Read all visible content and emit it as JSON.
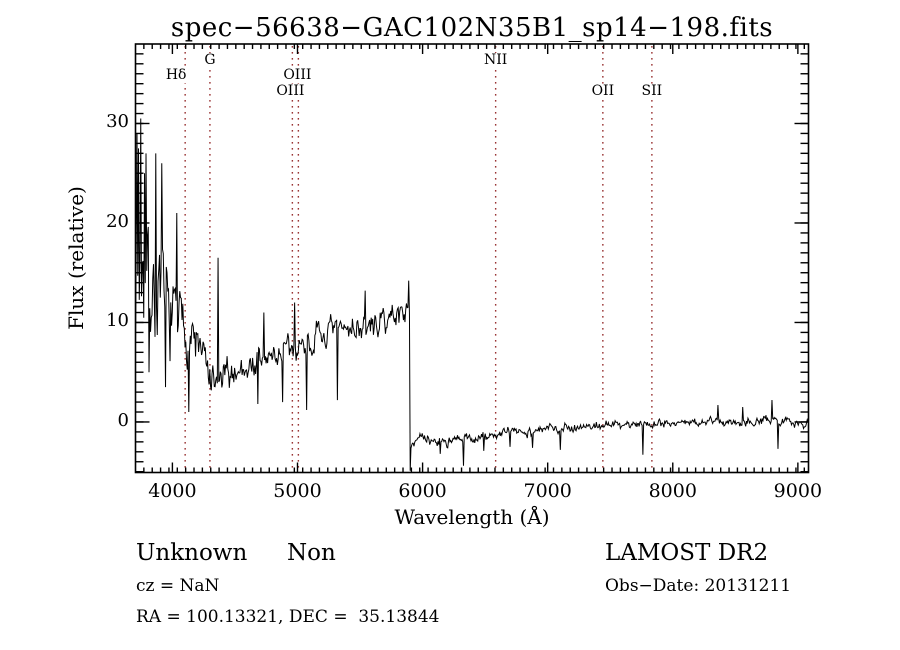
{
  "title": "spec−56638−GAC102N35B1_sp14−198.fits",
  "colors": {
    "spectrum": "#000000",
    "line_marker": "#993333",
    "axis": "#000000",
    "background": "#ffffff"
  },
  "axes": {
    "xlabel": "Wavelength (Å)",
    "ylabel": "Flux (relative)",
    "x_ticks": [
      4000,
      5000,
      6000,
      7000,
      8000,
      9000
    ],
    "y_ticks": [
      0,
      10,
      20,
      30
    ],
    "x_range": [
      3705,
      9085
    ],
    "y_range": [
      -5.08,
      37.99
    ]
  },
  "spectral_lines": [
    {
      "label": "Hδ",
      "wavelength": 4102,
      "row": 2,
      "dx": -9
    },
    {
      "label": "G",
      "wavelength": 4300,
      "row": 1,
      "dx": 0
    },
    {
      "label": "OIII",
      "wavelength": 4959,
      "row": 2,
      "dx": 5
    },
    {
      "label": "OIII",
      "wavelength": 5007,
      "row": 3,
      "dx": -8
    },
    {
      "label": "NII",
      "wavelength": 6584,
      "row": 1,
      "dx": 0
    },
    {
      "label": "OII",
      "wavelength": 7441,
      "row": 3,
      "dx": 0
    },
    {
      "label": "SII",
      "wavelength": 7833,
      "row": 3,
      "dx": 0
    }
  ],
  "chart_data": {
    "type": "line",
    "series_name": "spectrum",
    "title": "spec−56638−GAC102N35B1_sp14−198.fits",
    "xlabel": "Wavelength (Å)",
    "ylabel": "Flux (relative)",
    "xlim": [
      3705,
      9085
    ],
    "ylim": [
      -5.08,
      37.99
    ],
    "grid": "off",
    "sample_step_angstrom": 6,
    "noise_seed": 7,
    "baseline_points": [
      [
        3705,
        15
      ],
      [
        3720,
        17
      ],
      [
        3760,
        15
      ],
      [
        3800,
        14
      ],
      [
        3850,
        13
      ],
      [
        3900,
        12.5
      ],
      [
        3950,
        11.5
      ],
      [
        4000,
        10.5
      ],
      [
        4060,
        10
      ],
      [
        4110,
        9
      ],
      [
        4160,
        8.5
      ],
      [
        4210,
        7.5
      ],
      [
        4260,
        6
      ],
      [
        4300,
        4
      ],
      [
        4340,
        3.2
      ],
      [
        4380,
        4.2
      ],
      [
        4450,
        4.8
      ],
      [
        4550,
        5.3
      ],
      [
        4650,
        5.8
      ],
      [
        4750,
        6.3
      ],
      [
        4850,
        6.8
      ],
      [
        4950,
        7.2
      ],
      [
        5050,
        7.8
      ],
      [
        5150,
        8.3
      ],
      [
        5250,
        8.8
      ],
      [
        5350,
        9.3
      ],
      [
        5450,
        9.6
      ],
      [
        5550,
        9.4
      ],
      [
        5650,
        9.8
      ],
      [
        5750,
        10.6
      ],
      [
        5850,
        11.2
      ],
      [
        5896,
        10.8
      ],
      [
        5902,
        -2.0
      ],
      [
        5960,
        -1.6
      ],
      [
        6050,
        -1.9
      ],
      [
        6150,
        -1.9
      ],
      [
        6250,
        -2.0
      ],
      [
        6350,
        -1.7
      ],
      [
        6450,
        -1.6
      ],
      [
        6550,
        -1.4
      ],
      [
        6650,
        -1.1
      ],
      [
        6750,
        -0.9
      ],
      [
        6850,
        -1.0
      ],
      [
        6950,
        -0.8
      ],
      [
        7050,
        -0.6
      ],
      [
        7150,
        -0.5
      ],
      [
        7250,
        -0.5
      ],
      [
        7350,
        -0.4
      ],
      [
        7450,
        -0.3
      ],
      [
        7550,
        -0.3
      ],
      [
        7650,
        -0.2
      ],
      [
        7750,
        -0.2
      ],
      [
        7850,
        -0.1
      ],
      [
        7950,
        -0.1
      ],
      [
        8050,
        -0.05
      ],
      [
        8150,
        -0.1
      ],
      [
        8250,
        0
      ],
      [
        8350,
        0.1
      ],
      [
        8450,
        0
      ],
      [
        8550,
        0.05
      ],
      [
        8650,
        0.15
      ],
      [
        8750,
        0.1
      ],
      [
        8850,
        0.1
      ],
      [
        8950,
        0.1
      ],
      [
        9085,
        -0.2
      ]
    ],
    "noise_amplitude_points": [
      [
        3705,
        7
      ],
      [
        3760,
        6.5
      ],
      [
        3850,
        5
      ],
      [
        3950,
        4.2
      ],
      [
        4100,
        2.6
      ],
      [
        4250,
        2.2
      ],
      [
        4350,
        1.6
      ],
      [
        4600,
        1.5
      ],
      [
        5000,
        1.5
      ],
      [
        5500,
        1.3
      ],
      [
        5850,
        1.1
      ],
      [
        5896,
        1.0
      ],
      [
        5910,
        0.5
      ],
      [
        6300,
        0.55
      ],
      [
        7000,
        0.45
      ],
      [
        8000,
        0.42
      ],
      [
        9085,
        0.48
      ]
    ],
    "feature_points": [
      [
        3716,
        29
      ],
      [
        3731,
        27.5
      ],
      [
        3749,
        30.5
      ],
      [
        3775,
        25
      ],
      [
        3788,
        27
      ],
      [
        3815,
        5
      ],
      [
        3865,
        27
      ],
      [
        3912,
        26
      ],
      [
        3947,
        3.5
      ],
      [
        4035,
        21
      ],
      [
        4128,
        1
      ],
      [
        4365,
        16.5
      ],
      [
        4680,
        1.8
      ],
      [
        4730,
        11
      ],
      [
        4880,
        2.0
      ],
      [
        4978,
        12
      ],
      [
        5070,
        1.2
      ],
      [
        5320,
        2.2
      ],
      [
        5540,
        13.2
      ],
      [
        5888,
        14.2
      ],
      [
        5903,
        -4.9
      ],
      [
        6140,
        -3.2
      ],
      [
        6324,
        -4.4
      ],
      [
        6490,
        -2.9
      ],
      [
        6700,
        -2.5
      ],
      [
        6880,
        -2.6
      ],
      [
        7100,
        -2.8
      ],
      [
        7762,
        -3.3
      ],
      [
        8361,
        1.7
      ],
      [
        8560,
        1.5
      ],
      [
        8793,
        2.2
      ],
      [
        8841,
        -2.7
      ]
    ]
  },
  "footer": {
    "class_label": "Unknown",
    "subclass_label": "Non",
    "survey": "LAMOST DR2",
    "cz": "cz = NaN",
    "obs_date": "Obs−Date: 20131211",
    "coords": "RA = 100.13321, DEC =  35.13844"
  }
}
